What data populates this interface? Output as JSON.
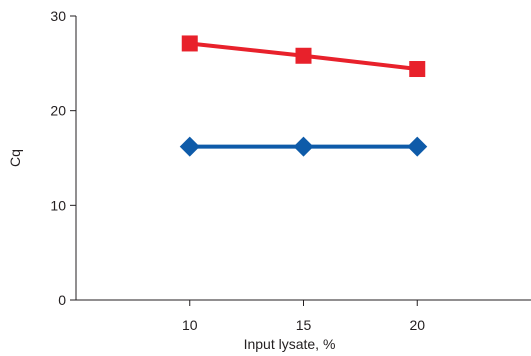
{
  "chart_data": {
    "type": "line",
    "title": "",
    "xlabel": "Input lysate, %",
    "ylabel": "Cq",
    "x": [
      10,
      15,
      20
    ],
    "xlim": [
      5,
      25
    ],
    "ylim": [
      0,
      30
    ],
    "xticks": [
      "10",
      "15",
      "20"
    ],
    "yticks": [
      "0",
      "10",
      "20",
      "30"
    ],
    "grid": false,
    "legend": "none",
    "series": [
      {
        "values": [
          27.1,
          25.8,
          24.4
        ],
        "color": "#e8212b",
        "marker": "square"
      },
      {
        "values": [
          16.2,
          16.2,
          16.2
        ],
        "color": "#0e5ba9",
        "marker": "diamond"
      }
    ]
  }
}
